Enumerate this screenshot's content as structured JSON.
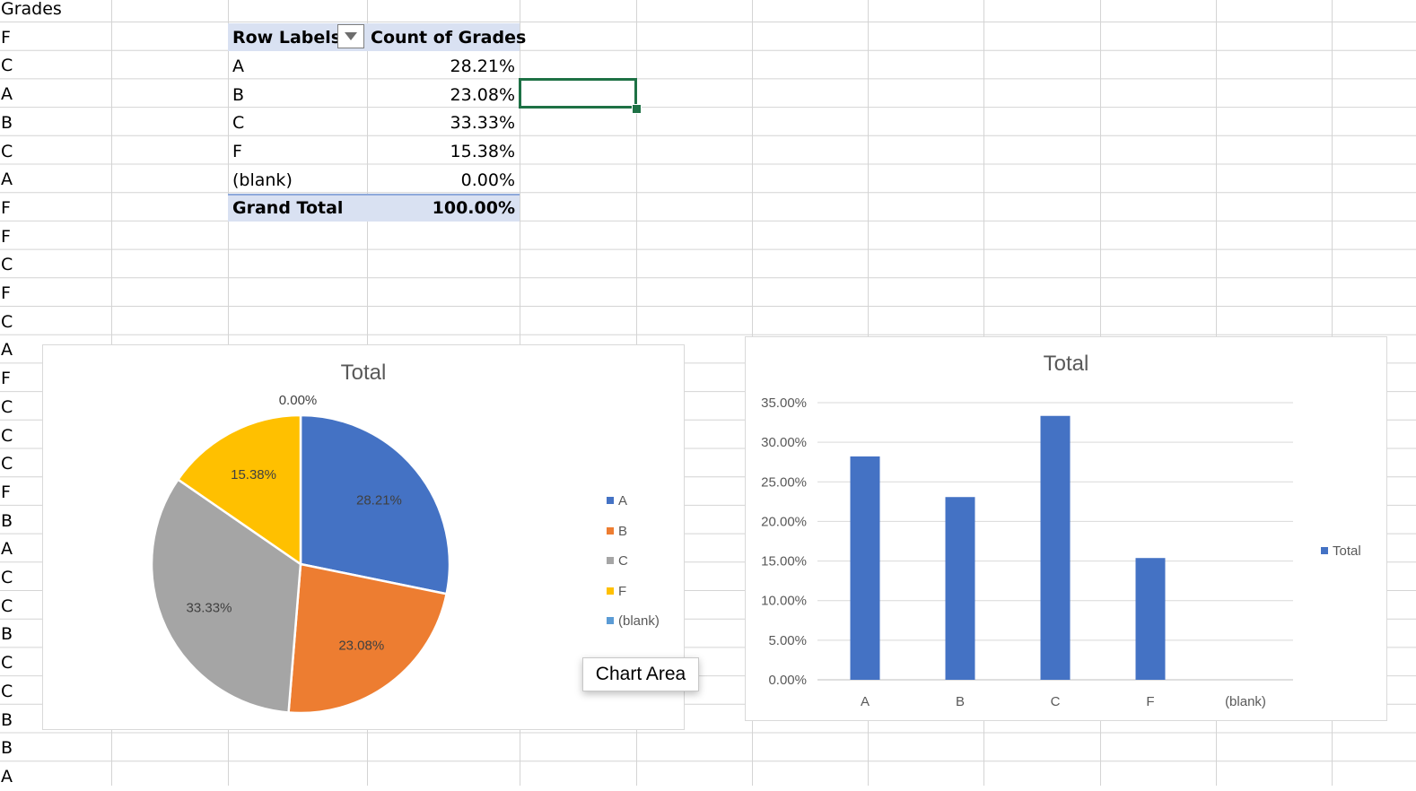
{
  "sheet": {
    "column_a": [
      "Grades",
      "F",
      "C",
      "A",
      "B",
      "C",
      "A",
      "F",
      "F",
      "C",
      "F",
      "C",
      "A",
      "F",
      "C",
      "C",
      "C",
      "F",
      "B",
      "A",
      "C",
      "C",
      "B",
      "C",
      "C",
      "B",
      "B",
      "A"
    ]
  },
  "pivot": {
    "header": {
      "row_labels": "Row Labels",
      "count": "Count of Grades"
    },
    "rows": [
      {
        "label": "A",
        "value": "28.21%"
      },
      {
        "label": "B",
        "value": "23.08%"
      },
      {
        "label": "C",
        "value": "33.33%"
      },
      {
        "label": "F",
        "value": "15.38%"
      },
      {
        "label": "(blank)",
        "value": "0.00%"
      }
    ],
    "total": {
      "label": "Grand Total",
      "value": "100.00%"
    }
  },
  "pie": {
    "title": "Total",
    "colors": [
      "#4472c4",
      "#ed7d31",
      "#a5a5a5",
      "#ffc000",
      "#5b9bd5"
    ],
    "legend": [
      "A",
      "B",
      "C",
      "F",
      "(blank)"
    ]
  },
  "bar": {
    "title": "Total",
    "legend": "Total",
    "color": "#4472c4"
  },
  "tooltip": {
    "text": "Chart Area"
  },
  "chart_data": [
    {
      "type": "pie",
      "title": "Total",
      "categories": [
        "A",
        "B",
        "C",
        "F",
        "(blank)"
      ],
      "values": [
        28.21,
        23.08,
        33.33,
        15.38,
        0.0
      ],
      "data_labels": [
        "28.21%",
        "23.08%",
        "33.33%",
        "15.38%",
        "0.00%"
      ],
      "legend": "right"
    },
    {
      "type": "bar",
      "title": "Total",
      "categories": [
        "A",
        "B",
        "C",
        "F",
        "(blank)"
      ],
      "series": [
        {
          "name": "Total",
          "values": [
            28.21,
            23.08,
            33.33,
            15.38,
            0.0
          ]
        }
      ],
      "yticks": [
        "0.00%",
        "5.00%",
        "10.00%",
        "15.00%",
        "20.00%",
        "25.00%",
        "30.00%",
        "35.00%"
      ],
      "ylim": [
        0,
        35
      ],
      "grid": true,
      "legend": "right"
    }
  ]
}
